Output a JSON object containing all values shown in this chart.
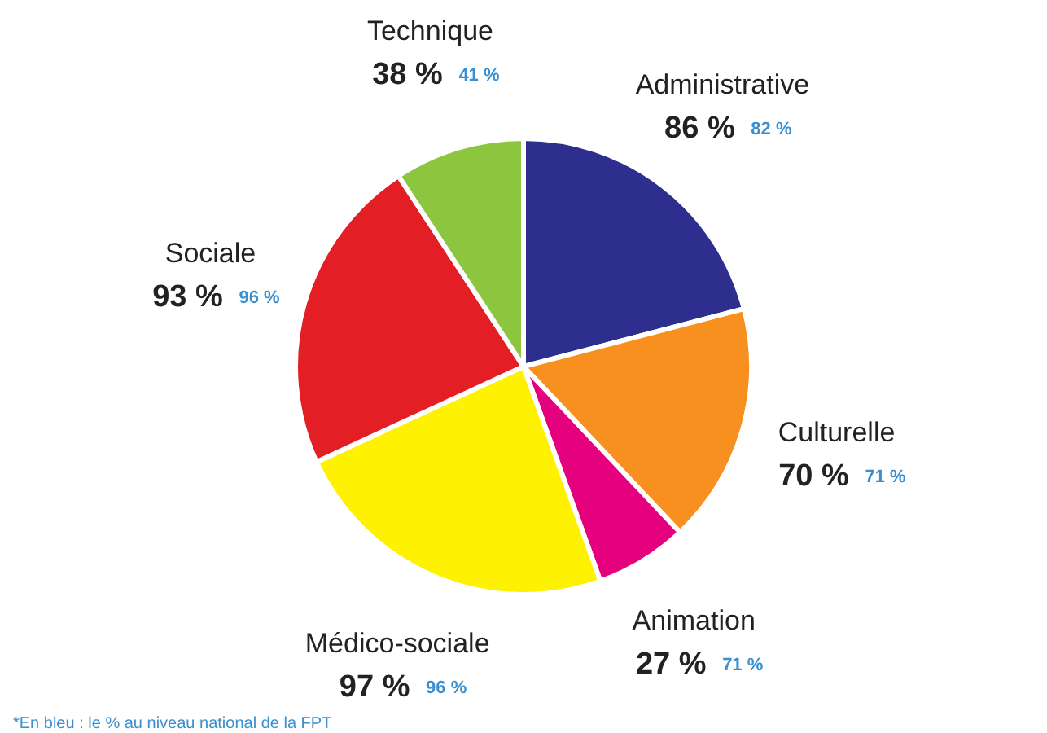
{
  "chart_data": {
    "type": "pie",
    "categories": [
      "Administrative",
      "Culturelle",
      "Animation",
      "Médico-sociale",
      "Sociale",
      "Technique"
    ],
    "values": [
      86,
      70,
      27,
      97,
      93,
      38
    ],
    "colors": [
      "#2e2e8f",
      "#f7901e",
      "#e5007e",
      "#fff200",
      "#e31e24",
      "#8cc63f"
    ],
    "value_labels": [
      "86 %",
      "70 %",
      "27 %",
      "97 %",
      "93 %",
      "38 %"
    ],
    "annotations": [
      "82 %",
      "71 %",
      "71 %",
      "96 %",
      "96 %",
      "41 %",
      "*En bleu : le % au niveau national de la FPT"
    ],
    "legend": false
  }
}
